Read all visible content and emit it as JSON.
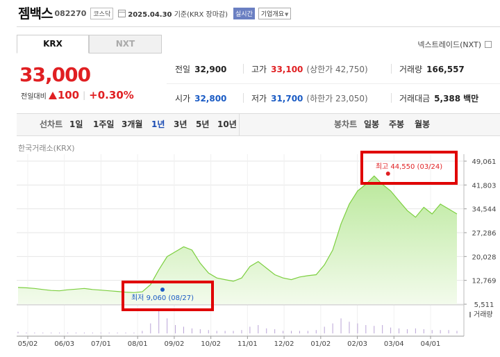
{
  "stock": {
    "name": "젬백스",
    "code": "082270",
    "market": "코스닥",
    "as_of_date": "2025.04.30",
    "as_of_suffix": "기준(KRX 장마감)",
    "realtime_label": "실시간",
    "company_overview_label": "기업개요"
  },
  "exchange_tabs": [
    {
      "label": "KRX",
      "active": true
    },
    {
      "label": "NXT",
      "active": false
    }
  ],
  "nextrade_label": "넥스트레이드(NXT)",
  "price": {
    "current": "33,000",
    "change_label": "전일대비",
    "change": "100",
    "change_pct": "+0.30%"
  },
  "stats": {
    "prev_close": {
      "label": "전일",
      "value": "32,900"
    },
    "high": {
      "label": "고가",
      "value": "33,100",
      "limit_label": "(상한가 42,750)"
    },
    "volume": {
      "label": "거래량",
      "value": "166,557"
    },
    "open": {
      "label": "시가",
      "value": "32,800"
    },
    "low": {
      "label": "저가",
      "value": "31,700",
      "limit_label": "(하한가 23,050)"
    },
    "trade_value": {
      "label": "거래대금",
      "value": "5,388",
      "unit": "백만"
    }
  },
  "period_bar": {
    "line_chart_label": "선차트",
    "periods": [
      "1일",
      "1주일",
      "3개월",
      "1년",
      "3년",
      "5년",
      "10년"
    ],
    "selected_period": "1년",
    "candle_label": "봉차트",
    "candle_periods": [
      "일봉",
      "주봉",
      "월봉"
    ]
  },
  "colors": {
    "up": "#e01f22",
    "down": "#1a5bc4",
    "area_fill": "#d8f2c4",
    "line": "#7ccf3f",
    "highlight_box": "#e00000"
  },
  "chart_data": {
    "type": "area",
    "source_label": "한국거래소(KRX)",
    "x_tick_labels": [
      "05/02",
      "06/03",
      "07/01",
      "08/01",
      "09/02",
      "10/02",
      "11/01",
      "12/02",
      "01/02",
      "02/03",
      "03/04",
      "04/01"
    ],
    "y_tick_labels": [
      "49,061",
      "41,803",
      "34,544",
      "27,286",
      "20,028",
      "12,769",
      "5,511"
    ],
    "ylim": [
      5511,
      49061
    ],
    "series": [
      {
        "values": [
          10600,
          10500,
          10300,
          10000,
          9700,
          9600,
          9900,
          10100,
          10300,
          10000,
          9800,
          9600,
          9400,
          9200,
          9060,
          9300,
          11500,
          16000,
          20000,
          21500,
          23000,
          22000,
          18000,
          15000,
          13500,
          13000,
          12500,
          13500,
          17000,
          18500,
          16500,
          14500,
          13500,
          13000,
          13800,
          14200,
          14500,
          17500,
          22000,
          30000,
          36000,
          40000,
          42000,
          44550,
          42000,
          40000,
          37000,
          34000,
          32000,
          35000,
          33000,
          36000,
          34500,
          33000
        ]
      }
    ],
    "high_annotation": {
      "label": "최고",
      "value": "44,550",
      "date": "(03/24)"
    },
    "low_annotation": {
      "label": "최저",
      "value": "9,060",
      "date": "(08/27)"
    },
    "volume_label": "거래량",
    "volume": [
      2,
      1,
      1,
      1,
      1,
      1,
      1,
      1,
      1,
      1,
      1,
      1,
      1,
      1,
      1,
      3,
      12,
      30,
      18,
      10,
      8,
      6,
      5,
      4,
      3,
      3,
      3,
      4,
      8,
      10,
      6,
      5,
      3,
      3,
      3,
      3,
      4,
      8,
      12,
      18,
      14,
      12,
      10,
      9,
      10,
      7,
      6,
      5,
      6,
      5,
      4,
      4,
      4,
      3
    ],
    "grid": true,
    "legend": "none"
  }
}
